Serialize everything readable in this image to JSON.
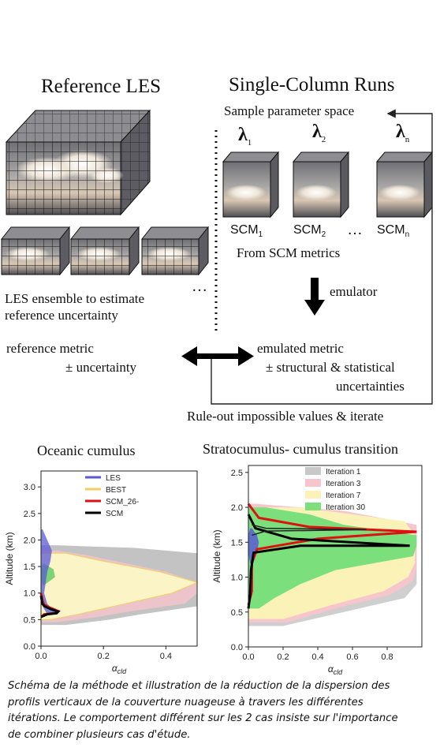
{
  "diagram": {
    "les_title": "Reference LES",
    "scm_title": "Single-Column Runs",
    "sample_label": "Sample parameter space",
    "lambdas": [
      {
        "symbol": "λ",
        "sub": "1"
      },
      {
        "symbol": "λ",
        "sub": "2"
      },
      {
        "symbol": "λ",
        "sub": "n"
      }
    ],
    "scm_labels": [
      {
        "base": "SCM",
        "sub": "1"
      },
      {
        "base": "SCM",
        "sub": "2"
      },
      {
        "base": "SCM",
        "sub": "n"
      }
    ],
    "ellipsis": "…",
    "scm_metrics": "From SCM metrics",
    "emulator": "emulator",
    "les_ensemble_line1": "LES ensemble to estimate",
    "les_ensemble_line2": "reference uncertainty",
    "les_dots": "…",
    "ref_metric_line1": "reference metric",
    "ref_metric_line2": "±  uncertainty",
    "emu_metric_line1": "emulated metric",
    "emu_metric_line2": "±  structural & statistical",
    "emu_metric_line3": "uncertainties",
    "rule_out": "Rule-out impossible values & iterate"
  },
  "charts": {
    "left_title": "Oceanic cumulus",
    "right_title": "Stratocumulus- cumulus transition",
    "ylabel": "Altitude (km)",
    "xlabel_main": "α",
    "xlabel_sub": "cld"
  },
  "chart_data": [
    {
      "type": "area",
      "title": "Oceanic cumulus",
      "xlabel": "αcld",
      "ylabel": "Altitude (km)",
      "xlim": [
        0,
        0.5
      ],
      "ylim": [
        0,
        3.3
      ],
      "xticks": [
        0.0,
        0.2,
        0.4
      ],
      "yticks": [
        0.0,
        0.5,
        1.0,
        1.5,
        2.0,
        2.5,
        3.0
      ],
      "legend_position": "top-right",
      "series": [
        {
          "name": "LES",
          "color": "#5a5ad6",
          "kind": "band",
          "y": [
            0.6,
            0.8,
            1.0,
            1.2,
            1.4,
            1.6,
            1.8,
            2.0,
            2.2
          ],
          "lo": [
            0.02,
            0.0,
            0.0,
            0.0,
            0.0,
            0.0,
            0.0,
            0.0,
            0.0
          ],
          "hi": [
            0.05,
            0.02,
            0.01,
            0.015,
            0.02,
            0.03,
            0.035,
            0.02,
            0.005
          ]
        },
        {
          "name": "BEST",
          "color": "#f0d060",
          "kind": "band",
          "y": [
            0.5,
            0.6,
            0.8,
            1.0,
            1.2,
            1.4,
            1.6,
            1.75
          ],
          "lo": [
            0.0,
            0.0,
            0.0,
            0.0,
            0.0,
            0.0,
            0.0,
            0.0
          ],
          "hi": [
            0.03,
            0.12,
            0.27,
            0.42,
            0.5,
            0.38,
            0.2,
            0.08
          ]
        },
        {
          "name": "SCM_26-",
          "color": "#dd1111",
          "kind": "line",
          "x": [
            0.0,
            0.01,
            0.045,
            0.055,
            0.03,
            0.01,
            0.005,
            0.0
          ],
          "y": [
            0.55,
            0.6,
            0.62,
            0.66,
            0.72,
            0.78,
            0.85,
            1.0
          ]
        },
        {
          "name": "SCM",
          "color": "#000000",
          "kind": "line",
          "x": [
            0.0,
            0.02,
            0.05,
            0.055,
            0.03,
            0.012,
            0.004,
            0.0
          ],
          "y": [
            0.55,
            0.6,
            0.62,
            0.65,
            0.7,
            0.75,
            0.8,
            0.95
          ]
        },
        {
          "name": "envelope",
          "color": "#b8b8b8",
          "kind": "band",
          "y": [
            0.4,
            0.6,
            0.8,
            1.0,
            1.2,
            1.4,
            1.6,
            1.8,
            1.9
          ],
          "lo": [
            0.0,
            0.0,
            0.0,
            0.0,
            0.0,
            0.0,
            0.0,
            0.0,
            0.0
          ],
          "hi": [
            0.25,
            0.5,
            0.5,
            0.5,
            0.5,
            0.5,
            0.5,
            0.5,
            0.05
          ]
        }
      ]
    },
    {
      "type": "area",
      "title": "Stratocumulus- cumulus transition",
      "xlabel": "αcld",
      "ylabel": "Altitude (km)",
      "xlim": [
        0,
        1.0
      ],
      "ylim": [
        0,
        2.6
      ],
      "xticks": [
        0.0,
        0.2,
        0.4,
        0.6,
        0.8
      ],
      "yticks": [
        0.0,
        0.5,
        1.0,
        1.5,
        2.0,
        2.5
      ],
      "legend_position": "top-right",
      "series": [
        {
          "name": "Iteration 1",
          "color": "#c8c8c8",
          "kind": "band"
        },
        {
          "name": "Iteration 3",
          "color": "#f7c6cc",
          "kind": "band"
        },
        {
          "name": "Iteration 7",
          "color": "#fbf2b8",
          "kind": "band"
        },
        {
          "name": "Iteration 30",
          "color": "#7be07b",
          "kind": "band"
        }
      ]
    }
  ]
}
